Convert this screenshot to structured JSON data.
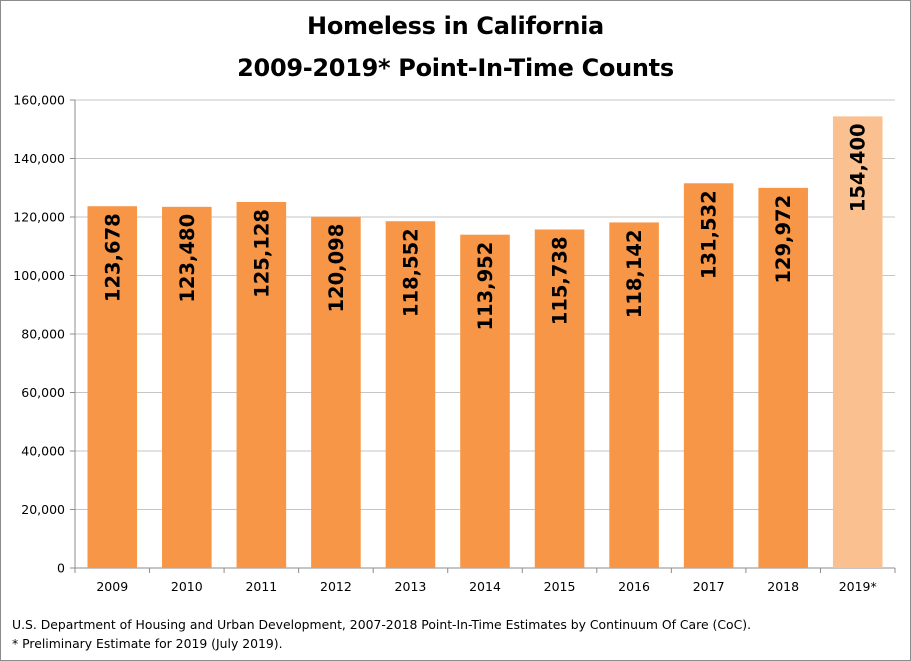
{
  "chart_data": {
    "type": "bar",
    "title_lines": [
      "Homeless in California",
      "2009-2019* Point-In-Time Counts"
    ],
    "categories": [
      "2009",
      "2010",
      "2011",
      "2012",
      "2013",
      "2014",
      "2015",
      "2016",
      "2017",
      "2018",
      "2019*"
    ],
    "values": [
      123678,
      123480,
      125128,
      120098,
      118552,
      113952,
      115738,
      118142,
      131532,
      129972,
      154400
    ],
    "data_labels": [
      "123,678",
      "123,480",
      "125,128",
      "120,098",
      "118,552",
      "113,952",
      "115,738",
      "118,142",
      "131,532",
      "129,972",
      "154,400"
    ],
    "y_ticks": [
      0,
      20000,
      40000,
      60000,
      80000,
      100000,
      120000,
      140000,
      160000
    ],
    "y_tick_labels": [
      "0",
      "20,000",
      "40,000",
      "60,000",
      "80,000",
      "100,000",
      "120,000",
      "140,000",
      "160,000"
    ],
    "ylim": [
      0,
      160000
    ],
    "grid": true,
    "bar_color": "#f79646",
    "estimate_bar_color": "#fac090",
    "estimate_index": 10,
    "footnotes": [
      "U.S. Department of Housing and Urban Development, 2007-2018 Point-In-Time Estimates by Continuum Of Care (CoC).",
      "* Preliminary Estimate for 2019 (July 2019)."
    ]
  }
}
